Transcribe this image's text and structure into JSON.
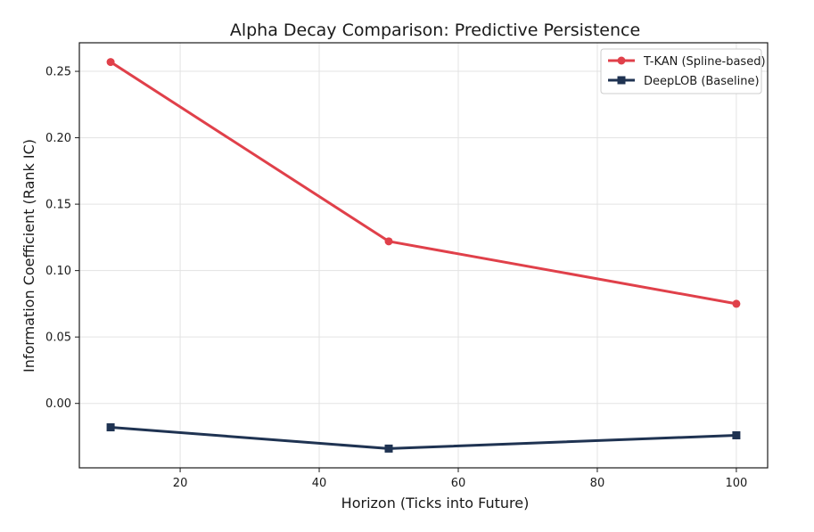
{
  "chart_data": {
    "type": "line",
    "title": "Alpha Decay Comparison: Predictive Persistence",
    "xlabel": "Horizon (Ticks into Future)",
    "ylabel": "Information Coefficient (Rank IC)",
    "xlim": [
      5.5,
      104.5
    ],
    "ylim": [
      -0.0485,
      0.2715
    ],
    "xticks": [
      20,
      40,
      60,
      80,
      100
    ],
    "yticks": [
      0.0,
      0.05,
      0.1,
      0.15,
      0.2,
      0.25
    ],
    "xtick_labels": [
      "20",
      "40",
      "60",
      "80",
      "100"
    ],
    "ytick_labels": [
      "0.00",
      "0.05",
      "0.10",
      "0.15",
      "0.20",
      "0.25"
    ],
    "grid": true,
    "legend_position": "top-right",
    "x": [
      10,
      50,
      100
    ],
    "series": [
      {
        "name": "T-KAN (Spline-based)",
        "values": [
          0.257,
          0.122,
          0.075
        ],
        "color": "#e0404a",
        "marker": "circle"
      },
      {
        "name": "DeepLOB (Baseline)",
        "values": [
          -0.018,
          -0.034,
          -0.024
        ],
        "color": "#1f3352",
        "marker": "square"
      }
    ]
  }
}
